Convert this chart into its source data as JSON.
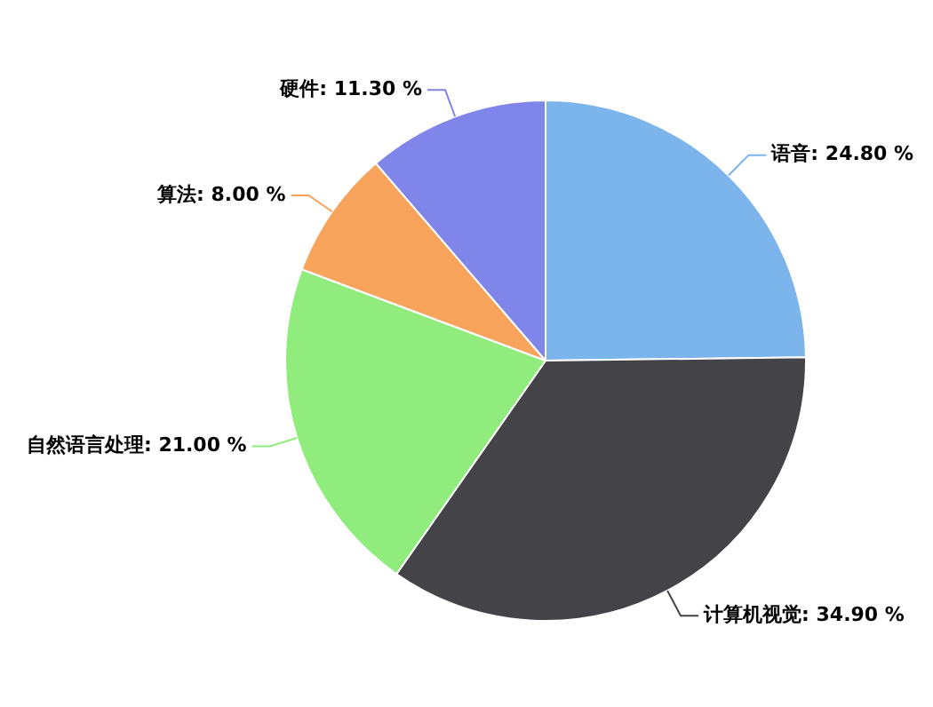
{
  "chart_data": {
    "type": "pie",
    "categories": [
      "语音",
      "计算机视觉",
      "自然语言处理",
      "算法",
      "硬件"
    ],
    "values": [
      24.8,
      34.9,
      21.0,
      8.0,
      11.3
    ],
    "value_labels": [
      "24.80 %",
      "34.90 %",
      "21.00 %",
      "8.00 %",
      "11.30 %"
    ],
    "colors": [
      "#7cb5ec",
      "#434348",
      "#90ed7d",
      "#f7a35c",
      "#8085e9"
    ],
    "legend": false
  }
}
